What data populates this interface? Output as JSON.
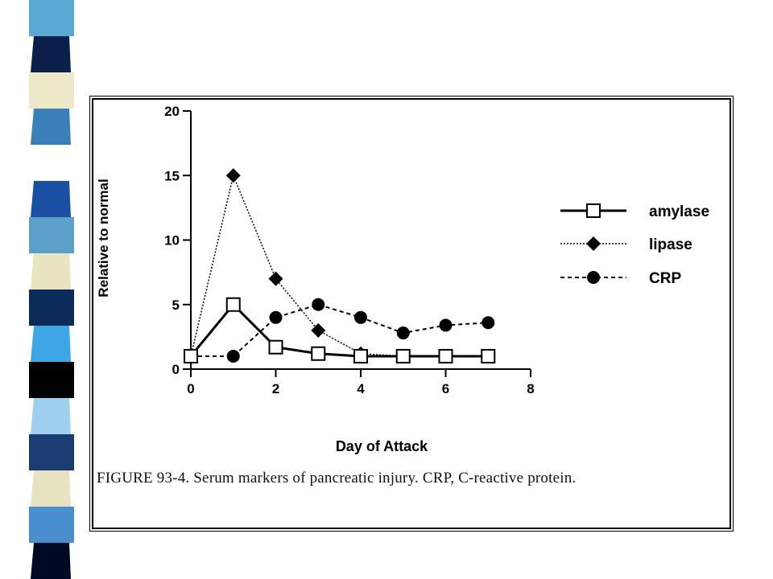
{
  "decor": {
    "strip_colors": [
      "#59a9d4",
      "#0a1f4a",
      "#ece8c8",
      "#3a7fb8",
      "#ffffff",
      "#1a4fa3",
      "#5aa0c8",
      "#e8e4bf",
      "#0c2a5a",
      "#3fa6e6",
      "#000000",
      "#9fd0ef",
      "#1b3b73",
      "#e7e3c0",
      "#4a8fd0",
      "#000a24"
    ]
  },
  "chart_data": {
    "type": "line",
    "xlabel": "Day of Attack",
    "ylabel": "Relative to normal",
    "x_ticks": [
      "0",
      "2",
      "4",
      "6",
      "8"
    ],
    "y_ticks": [
      "0",
      "5",
      "10",
      "15",
      "20"
    ],
    "xlim": [
      0,
      8
    ],
    "ylim": [
      0,
      20
    ],
    "grid": false,
    "legend_position": "right",
    "series": [
      {
        "name": "amylase",
        "marker": "open-square",
        "line": "solid",
        "x": [
          0,
          1,
          2,
          3,
          4,
          5,
          6,
          7
        ],
        "values": [
          1,
          5,
          1.7,
          1.2,
          1,
          1,
          1,
          1
        ]
      },
      {
        "name": "lipase",
        "marker": "filled-diamond",
        "line": "dotted",
        "x": [
          0,
          1,
          2,
          3,
          4,
          5
        ],
        "values": [
          1,
          15,
          7,
          3,
          1.2,
          1
        ]
      },
      {
        "name": "CRP",
        "marker": "filled-circle",
        "line": "dashed",
        "x": [
          0,
          1,
          2,
          3,
          4,
          5,
          6,
          7
        ],
        "values": [
          1,
          1,
          4,
          5,
          4,
          2.8,
          3.4,
          3.6
        ]
      }
    ]
  },
  "caption": "FIGURE 93-4. Serum markers of pancreatic injury. CRP, C-reactive protein."
}
